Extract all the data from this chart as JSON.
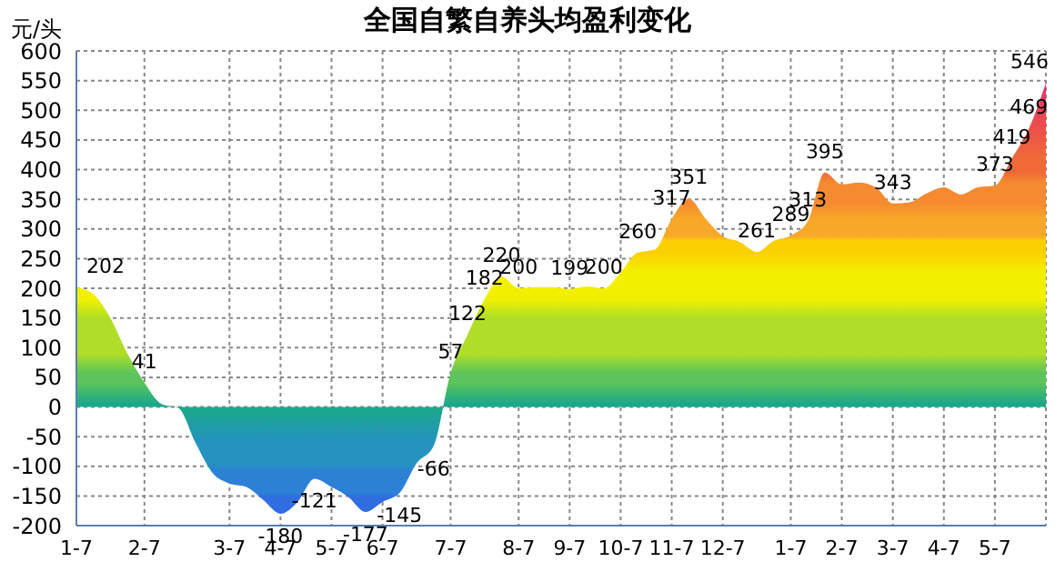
{
  "chart_data": {
    "type": "area",
    "title": "全国自繁自养头均盈利变化",
    "ylabel": "元/头",
    "categories": [
      "1-7",
      null,
      null,
      null,
      "2-7",
      null,
      null,
      null,
      null,
      "3-7",
      null,
      null,
      "4-7",
      null,
      null,
      "5-7",
      null,
      null,
      "6-7",
      null,
      null,
      null,
      "7-7",
      null,
      null,
      null,
      "8-7",
      null,
      null,
      "9-7",
      null,
      null,
      "10-7",
      null,
      null,
      "11-7",
      null,
      null,
      "12-7",
      null,
      null,
      null,
      "1-7",
      null,
      null,
      "2-7",
      null,
      null,
      "3-7",
      null,
      null,
      "4-7",
      null,
      null,
      "5-7",
      null,
      null,
      null
    ],
    "series": [
      {
        "values": [
          202,
          190,
          150,
          90,
          41,
          5,
          -2,
          -60,
          -111,
          -129,
          -135,
          -157,
          -180,
          -160,
          -121,
          -135,
          -152,
          -177,
          -160,
          -145,
          -95,
          -66,
          57,
          122,
          182,
          220,
          200,
          202,
          202,
          199,
          203,
          200,
          227,
          260,
          265,
          317,
          351,
          317,
          288,
          278,
          261,
          280,
          289,
          313,
          395,
          375,
          378,
          370,
          343,
          345,
          360,
          370,
          358,
          370,
          373,
          419,
          469,
          546
        ],
        "colors": [
          "#f2f000",
          "#f2f000",
          "#b0de28",
          "#b0de28",
          "#5cc45a",
          "#1aa88a",
          "#1aa88a",
          "#2592c0",
          "#2c80d6",
          "#2c80d6",
          "#2c80d6",
          "#2f6de0",
          "#2f6de0",
          "#2f6de0",
          "#2c80d6",
          "#2c80d6",
          "#2f6de0",
          "#2f6de0",
          "#2f6de0",
          "#2c80d6",
          "#2592c0",
          "#2592c0",
          "#5cc45a",
          "#b0de28",
          "#f2f000",
          "#f2f000",
          "#f2f000",
          "#f2f000",
          "#f2f000",
          "#f2f000",
          "#f2f000",
          "#f2f000",
          "#f2f000",
          "#fbd000",
          "#fbd000",
          "#f8a828",
          "#f58a30",
          "#f8a828",
          "#f8a828",
          "#fbd000",
          "#fbd000",
          "#fbd000",
          "#f8a828",
          "#f8a828",
          "#f06a38",
          "#f58a30",
          "#f58a30",
          "#f58a30",
          "#f58a30",
          "#f58a30",
          "#f58a30",
          "#f58a30",
          "#f58a30",
          "#f58a30",
          "#f58a30",
          "#f06a38",
          "#ec5048",
          "#e83070"
        ],
        "value_labels": [
          "202",
          null,
          null,
          null,
          "41",
          null,
          null,
          null,
          null,
          null,
          null,
          null,
          "-180",
          null,
          "-121",
          null,
          null,
          "-177",
          null,
          "-145",
          null,
          "-66",
          "57",
          "122",
          "182",
          "220",
          "200",
          null,
          null,
          "199",
          null,
          "200",
          null,
          "260",
          null,
          "317",
          "351",
          null,
          null,
          null,
          "261",
          null,
          "289",
          "313",
          "395",
          null,
          null,
          null,
          "343",
          null,
          null,
          null,
          null,
          null,
          "373",
          "419",
          "469",
          "546"
        ]
      }
    ],
    "ylim": [
      -200,
      600
    ],
    "yticks": [
      -200,
      -150,
      -100,
      -50,
      0,
      50,
      100,
      150,
      200,
      250,
      300,
      350,
      400,
      450,
      500,
      550,
      600
    ],
    "grid": true
  }
}
